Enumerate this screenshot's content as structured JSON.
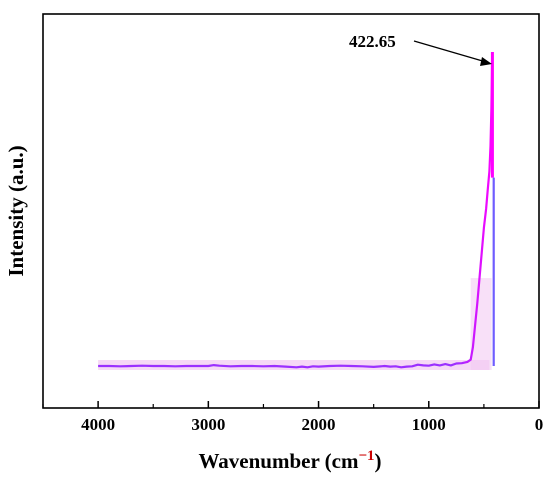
{
  "chart_data": {
    "type": "line",
    "xlabel_main": "Wavenumber (cm",
    "xlabel_sup": "−1",
    "xlabel_close": ")",
    "ylabel": "Intensity (a.u.)",
    "xlim": [
      4500,
      0
    ],
    "x_reversed": true,
    "y_ticks_shown": false,
    "ylim": [
      0,
      1.1
    ],
    "x_ticks": [
      4000,
      3000,
      2000,
      1000,
      0
    ],
    "x_tick_labels": [
      "4000",
      "3000",
      "2000",
      "1000",
      "0"
    ],
    "grid": false,
    "annotation": {
      "text": "422.65",
      "x": 422.65,
      "y": 1.0
    },
    "colors": {
      "line_start": "#9b30ff",
      "line_end": "#ff00ff",
      "peak_line": "#6f5cff",
      "band": "#f3cbf3",
      "superscript": "#cc0000"
    },
    "series": [
      {
        "values": [
          [
            4000,
            0.0
          ],
          [
            3900,
            0.0
          ],
          [
            3800,
            -0.001
          ],
          [
            3700,
            0.0
          ],
          [
            3600,
            0.001
          ],
          [
            3500,
            0.0
          ],
          [
            3400,
            0.0
          ],
          [
            3300,
            -0.001
          ],
          [
            3200,
            0.0
          ],
          [
            3100,
            0.0
          ],
          [
            3000,
            0.0
          ],
          [
            2950,
            0.003
          ],
          [
            2900,
            0.001
          ],
          [
            2800,
            -0.001
          ],
          [
            2700,
            0.0
          ],
          [
            2600,
            0.0
          ],
          [
            2500,
            -0.001
          ],
          [
            2400,
            0.0
          ],
          [
            2300,
            -0.002
          ],
          [
            2200,
            -0.004
          ],
          [
            2150,
            -0.002
          ],
          [
            2100,
            -0.004
          ],
          [
            2050,
            -0.001
          ],
          [
            2000,
            -0.002
          ],
          [
            1900,
            0.0
          ],
          [
            1800,
            0.001
          ],
          [
            1700,
            0.0
          ],
          [
            1600,
            -0.001
          ],
          [
            1500,
            -0.003
          ],
          [
            1400,
            0.0
          ],
          [
            1350,
            -0.002
          ],
          [
            1300,
            -0.001
          ],
          [
            1250,
            -0.004
          ],
          [
            1200,
            -0.002
          ],
          [
            1150,
            -0.001
          ],
          [
            1100,
            0.004
          ],
          [
            1050,
            0.002
          ],
          [
            1000,
            0.001
          ],
          [
            950,
            0.005
          ],
          [
            900,
            0.002
          ],
          [
            850,
            0.006
          ],
          [
            800,
            0.002
          ],
          [
            750,
            0.008
          ],
          [
            700,
            0.009
          ],
          [
            650,
            0.013
          ],
          [
            620,
            0.02
          ],
          [
            600,
            0.06
          ],
          [
            580,
            0.13
          ],
          [
            560,
            0.2
          ],
          [
            540,
            0.28
          ],
          [
            520,
            0.36
          ],
          [
            500,
            0.44
          ],
          [
            480,
            0.5
          ],
          [
            465,
            0.56
          ],
          [
            450,
            0.62
          ],
          [
            440,
            0.7
          ],
          [
            432,
            0.82
          ],
          [
            426,
            0.95
          ],
          [
            422.65,
            1.0
          ],
          [
            420,
            0.0
          ]
        ]
      }
    ]
  }
}
